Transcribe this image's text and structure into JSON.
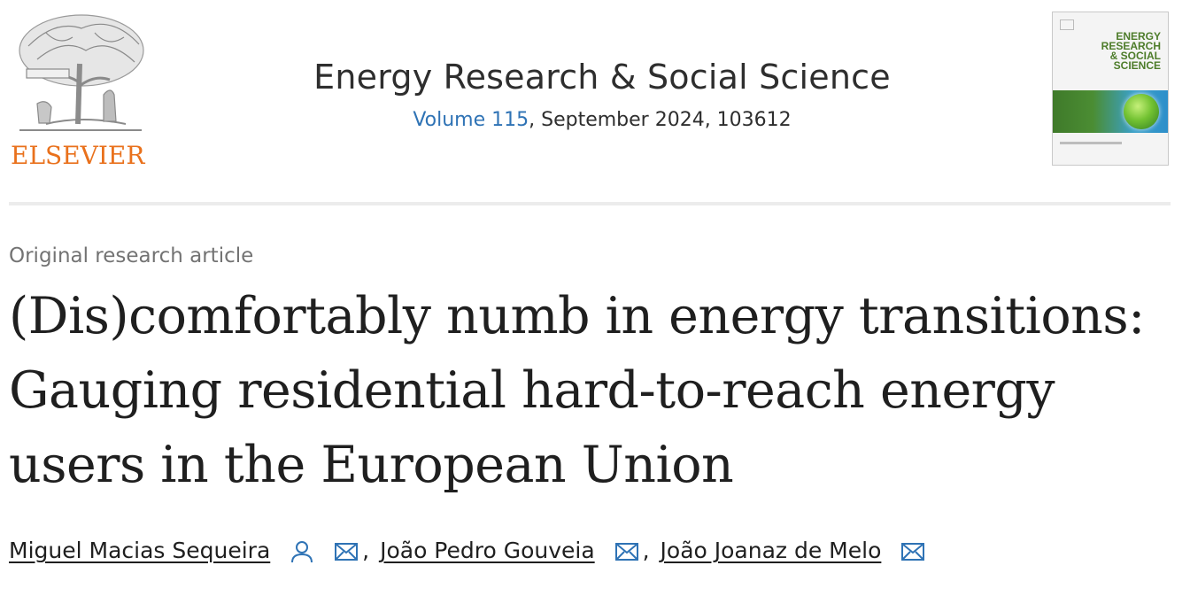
{
  "publisher": {
    "logo_text": "ELSEVIER",
    "logo_icon": "elsevier-tree-logo"
  },
  "journal": {
    "title": "Energy Research & Social Science",
    "volume_link": "Volume 115",
    "issue_info": ", September 2024, 103612"
  },
  "cover": {
    "title_lines": [
      "ENERGY",
      "RESEARCH",
      "& SOCIAL",
      "SCIENCE"
    ]
  },
  "article": {
    "type": "Original research article",
    "title": "(Dis)comfortably numb in energy transitions: Gauging residential hard-to-reach energy users in the European Union"
  },
  "authors": [
    {
      "name": "Miguel Macias Sequeira",
      "icons": [
        "person-icon",
        "envelope-icon"
      ]
    },
    {
      "name": "João Pedro Gouveia",
      "icons": [
        "envelope-icon"
      ]
    },
    {
      "name": "João Joanaz de Melo",
      "icons": [
        "envelope-icon"
      ]
    }
  ],
  "separator": ",",
  "colors": {
    "link": "#2f73b5",
    "publisher_orange": "#e9711c",
    "muted_text": "#737373"
  }
}
